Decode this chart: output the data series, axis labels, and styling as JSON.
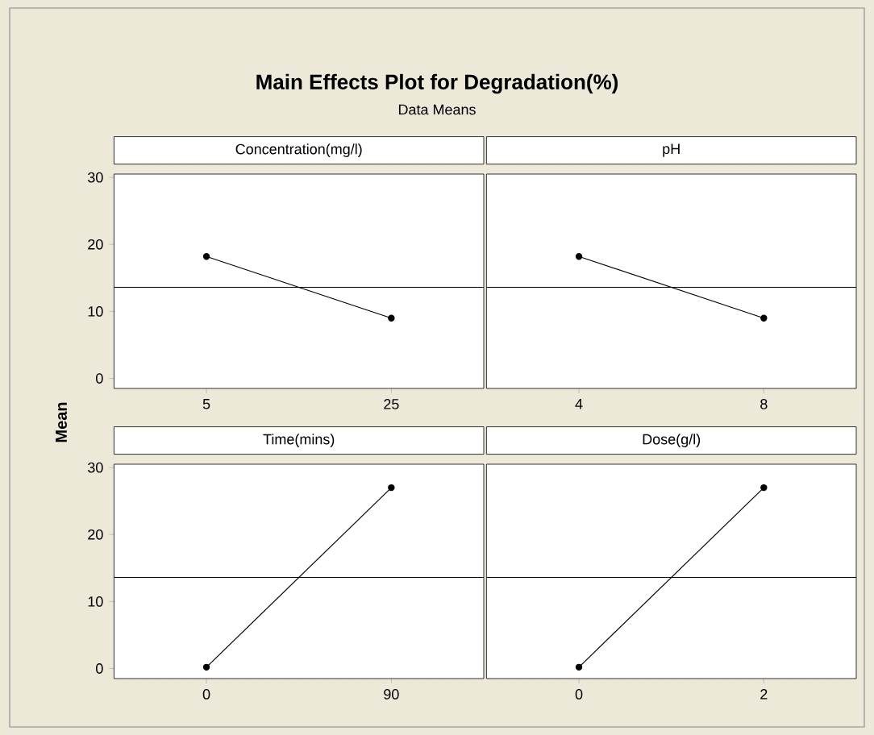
{
  "chart_data": [
    {
      "type": "line",
      "title": "Main Effects Plot for Degradation(%)",
      "subtitle": "Data Means",
      "ylabel": "Mean",
      "xlabel": "Concentration(mg/l)",
      "categories": [
        "5",
        "25"
      ],
      "values": [
        18.2,
        9.0
      ],
      "color": "#000000",
      "marker": "circle",
      "ylim": [
        -1.5,
        30.5
      ],
      "yticks": [
        0,
        10,
        20,
        30
      ],
      "ref_lines": [
        {
          "axis": "y",
          "value": 13.6,
          "color": "#000000"
        }
      ]
    },
    {
      "type": "line",
      "xlabel": "pH",
      "categories": [
        "4",
        "8"
      ],
      "values": [
        18.2,
        9.0
      ],
      "color": "#000000",
      "marker": "circle",
      "ylim": [
        -1.5,
        30.5
      ],
      "yticks": [
        0,
        10,
        20,
        30
      ],
      "tick_labels": "x",
      "ref_lines": [
        {
          "axis": "y",
          "value": 13.6,
          "color": "#000000"
        }
      ]
    },
    {
      "type": "line",
      "xlabel": "Time(mins)",
      "categories": [
        "0",
        "90"
      ],
      "values": [
        0.2,
        27.0
      ],
      "color": "#000000",
      "marker": "circle",
      "ylim": [
        -1.5,
        30.5
      ],
      "yticks": [
        0,
        10,
        20,
        30
      ],
      "ref_lines": [
        {
          "axis": "y",
          "value": 13.6,
          "color": "#000000"
        }
      ]
    },
    {
      "type": "line",
      "xlabel": "Dose(g/l)",
      "categories": [
        "0",
        "2"
      ],
      "values": [
        0.2,
        27.0
      ],
      "color": "#000000",
      "marker": "circle",
      "ylim": [
        -1.5,
        30.5
      ],
      "yticks": [
        0,
        10,
        20,
        30
      ],
      "tick_labels": "x",
      "ref_lines": [
        {
          "axis": "y",
          "value": 13.6,
          "color": "#000000"
        }
      ]
    }
  ]
}
